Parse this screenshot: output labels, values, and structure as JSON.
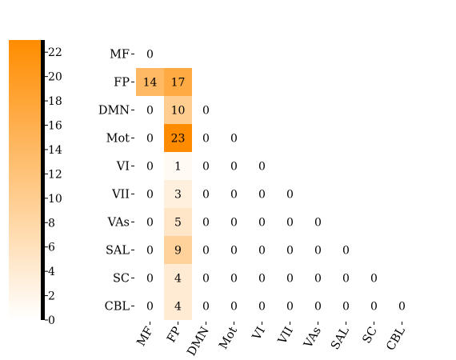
{
  "chart_data": {
    "type": "heatmap",
    "title": "",
    "xlabel": "",
    "ylabel": "",
    "rows": [
      "MF",
      "FP",
      "DMN",
      "Mot",
      "VI",
      "VII",
      "VAs",
      "SAL",
      "SC",
      "CBL"
    ],
    "columns": [
      "MF",
      "FP",
      "DMN",
      "Mot",
      "VI",
      "VII",
      "VAs",
      "SAL",
      "SC",
      "CBL"
    ],
    "matrix": [
      [
        0
      ],
      [
        14,
        17
      ],
      [
        0,
        10,
        0
      ],
      [
        0,
        23,
        0,
        0
      ],
      [
        0,
        1,
        0,
        0,
        0
      ],
      [
        0,
        3,
        0,
        0,
        0,
        0
      ],
      [
        0,
        5,
        0,
        0,
        0,
        0,
        0
      ],
      [
        0,
        9,
        0,
        0,
        0,
        0,
        0,
        0
      ],
      [
        0,
        4,
        0,
        0,
        0,
        0,
        0,
        0,
        0
      ],
      [
        0,
        4,
        0,
        0,
        0,
        0,
        0,
        0,
        0,
        0
      ]
    ],
    "triangle": "lower",
    "colorbar": {
      "min": 0,
      "max": 23,
      "ticks": [
        0,
        2,
        4,
        6,
        8,
        10,
        12,
        14,
        16,
        18,
        20,
        22
      ],
      "placement": "left"
    },
    "colors": {
      "low": "#ffffff",
      "high": "#ff8c00"
    }
  }
}
